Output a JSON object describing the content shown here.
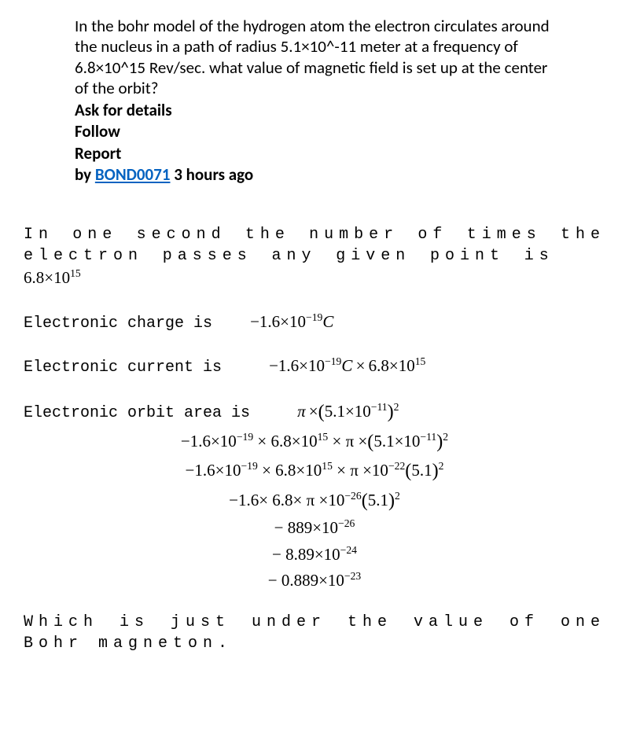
{
  "question": {
    "text": "In the bohr model of the hydrogen atom the electron circulates around the nucleus in a path of radius 5.1×10^-11 meter at a frequency of 6.8×10^15 Rev/sec. what value of magnetic field is set up at the center of the orbit?",
    "ask": "Ask for details",
    "follow": "Follow",
    "report": "Report",
    "by_prefix": "by ",
    "author": "BOND0071",
    "author_url": "#",
    "timestamp": " 3 hours ago"
  },
  "answer": {
    "line1_a": "In one second the number of times the electron passes any given point is",
    "freq": "6.8×10",
    "freq_exp": "15",
    "line2": "Electronic charge is",
    "charge": "−1.6×10",
    "charge_exp": "−19",
    "charge_unit": "C",
    "line3": "Electronic current is",
    "line4": "Electronic orbit area is",
    "radius": "5.1×10",
    "radius_exp": "−11",
    "eq3_exp": "−22",
    "eq3_tail": "5.1",
    "eq4_exp": "−26",
    "eq5": "− 889×10",
    "eq5_exp": "−26",
    "eq6": "− 8.89×10",
    "eq6_exp": "−24",
    "eq7": "− 0.889×10",
    "eq7_exp": "−23",
    "closing": "Which is just under the value of one Bohr magneton."
  },
  "style": {
    "link_color": "#0563c1",
    "bg": "#ffffff",
    "text": "#000000"
  }
}
